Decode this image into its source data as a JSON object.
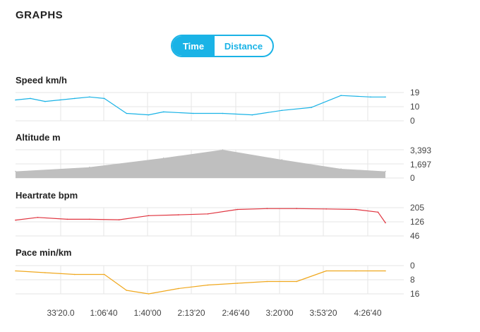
{
  "header": {
    "title": "GRAPHS"
  },
  "toggle": {
    "time_label": "Time",
    "distance_label": "Distance",
    "selected": "Time"
  },
  "colors": {
    "accent": "#1ab3e6",
    "speed": "#1ab3e6",
    "altitude": "#bfbfbf",
    "heartrate": "#e0343f",
    "pace": "#f0a81e",
    "grid": "#e6e6e6"
  },
  "graphs": [
    {
      "label": "Speed km/h",
      "ticks": [
        "19",
        "10",
        "0"
      ]
    },
    {
      "label": "Altitude m",
      "ticks": [
        "3,393",
        "1,697",
        "0"
      ]
    },
    {
      "label": "Heartrate bpm",
      "ticks": [
        "205",
        "126",
        "46"
      ]
    },
    {
      "label": "Pace min/km",
      "ticks": [
        "0",
        "8",
        "16"
      ]
    }
  ],
  "x_ticks": [
    "33'20.0",
    "1:06'40",
    "1:40'00",
    "2:13'20",
    "2:46'40",
    "3:20'00",
    "3:53'20",
    "4:26'40"
  ],
  "chart_data": [
    {
      "type": "line",
      "title": "Speed km/h",
      "ylim": [
        0,
        19
      ],
      "x": [
        0,
        0.2,
        0.4,
        0.6,
        0.8,
        1.0,
        1.2,
        1.5,
        1.8,
        2.0,
        2.4,
        2.8,
        3.2,
        3.6,
        4.0,
        4.4,
        4.8,
        5.0
      ],
      "values": [
        14,
        15,
        13,
        14,
        15,
        16,
        15,
        5,
        4,
        6,
        5,
        5,
        4,
        7,
        9,
        17,
        16,
        16
      ]
    },
    {
      "type": "area",
      "title": "Altitude m",
      "ylim": [
        0,
        3393
      ],
      "x": [
        0,
        1.0,
        2.0,
        2.8,
        3.6,
        4.4,
        5.0
      ],
      "values": [
        800,
        1300,
        2400,
        3393,
        2200,
        1100,
        800
      ]
    },
    {
      "type": "line",
      "title": "Heartrate bpm",
      "ylim": [
        46,
        205
      ],
      "x": [
        0,
        0.3,
        0.7,
        1.0,
        1.4,
        1.8,
        2.2,
        2.6,
        3.0,
        3.4,
        3.8,
        4.2,
        4.6,
        4.9,
        5.0
      ],
      "values": [
        135,
        150,
        140,
        140,
        137,
        160,
        165,
        170,
        195,
        200,
        200,
        198,
        195,
        180,
        120
      ]
    },
    {
      "type": "line",
      "title": "Pace min/km",
      "ylim": [
        0,
        16
      ],
      "x": [
        0,
        0.4,
        0.8,
        1.2,
        1.5,
        1.8,
        2.2,
        2.6,
        3.0,
        3.4,
        3.8,
        4.2,
        4.6,
        5.0
      ],
      "values": [
        3,
        4,
        5,
        5,
        14,
        16,
        13,
        11,
        10,
        9,
        9,
        3,
        3,
        3
      ]
    }
  ]
}
